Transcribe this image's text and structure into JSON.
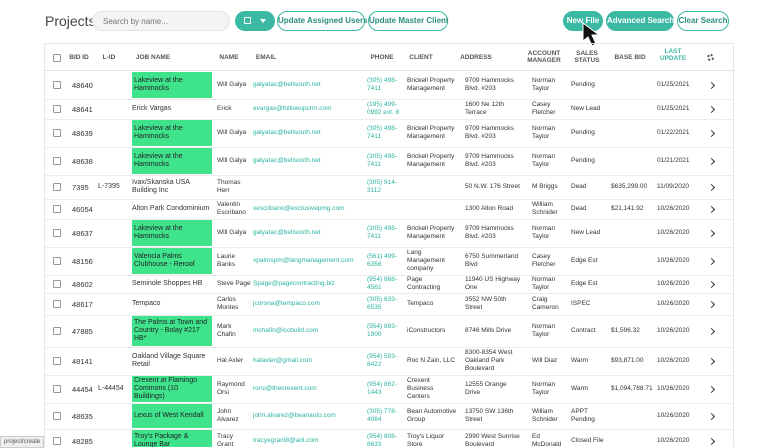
{
  "page_title": "Projects",
  "search": {
    "placeholder": "Search by name..."
  },
  "toolbar": {
    "update_assigned_label": "Update Assigned Users",
    "update_master_label": "Update Master Client",
    "new_file_label": "New File",
    "advanced_search_label": "Advanced Search",
    "clear_search_label": "Clear Search"
  },
  "colors": {
    "accent": "#3cb9a3",
    "highlight": "#3fe38c"
  },
  "columns": {
    "bid_id": "BID ID",
    "l_id": "L-ID",
    "job_name": "JOB NAME",
    "name": "NAME",
    "email": "EMAIL",
    "phone": "PHONE",
    "client": "CLIENT",
    "address": "ADDRESS",
    "account_manager": "ACCOUNT MANAGER",
    "sales_status": "SALES STATUS",
    "base_bid": "BASE BID",
    "last_update": "LAST UPDATE"
  },
  "rows": [
    {
      "bid": "48640",
      "lid": "",
      "job": "Lakeview at the Hammocks",
      "hl": true,
      "name": "Will Galya",
      "email": "galyatac@bellsouth.net",
      "phone": "(305) 498-7411",
      "client": "Brickell Property Management",
      "address": "9709 Hammocks Blvd. #203",
      "am": "Norman Taylor",
      "status": "Pending",
      "base": "",
      "date": "01/25/2021"
    },
    {
      "bid": "48641",
      "lid": "",
      "job": "Erick Vargas",
      "hl": false,
      "name": "Erick",
      "email": "evargas@followupcrm.com",
      "phone": "(195) 499-0992 ext. 8",
      "client": "",
      "address": "1600 Ne 12th Terrace",
      "am": "Casey Fletcher",
      "status": "New Lead",
      "base": "",
      "date": "01/25/2021"
    },
    {
      "bid": "48639",
      "lid": "",
      "job": "Lakeview at the Hammocks",
      "hl": true,
      "name": "Will Galya",
      "email": "galyatac@bellsouth.net",
      "phone": "(305) 498-7411",
      "client": "Brickell Property Management",
      "address": "9709 Hammocks Blvd. #203",
      "am": "Norman Taylor",
      "status": "Pending",
      "base": "",
      "date": "01/22/2021"
    },
    {
      "bid": "48638",
      "lid": "",
      "job": "Lakeview at the Hammocks",
      "hl": true,
      "name": "Will Galya",
      "email": "galyatac@bellsouth.net",
      "phone": "(305) 498-7411",
      "client": "Brickell Property Management",
      "address": "9709 Hammocks Blvd. #203",
      "am": "Norman Taylor",
      "status": "Pending",
      "base": "",
      "date": "01/21/2021"
    },
    {
      "bid": "7395",
      "lid": "L-7395",
      "job": "Ivax/Skanska USA Building Inc",
      "hl": false,
      "name": "Thomas Herr",
      "email": "",
      "phone": "(305) 914-3112",
      "client": "",
      "address": "50 N.W. 176 Street",
      "am": "M Briggs",
      "status": "Dead",
      "base": "$635,299.00",
      "date": "11/09/2020"
    },
    {
      "bid": "46054",
      "lid": "",
      "job": "Alton Park Condominium",
      "hl": false,
      "name": "Valentin Escribano",
      "email": "vescribano@exclusivepmg.com",
      "phone": "",
      "client": "",
      "address": "1300 Alton Road",
      "am": "William Schnider",
      "status": "Dead",
      "base": "$21,141.92",
      "date": "10/26/2020"
    },
    {
      "bid": "48637",
      "lid": "",
      "job": "Lakeview at the Hammocks",
      "hl": true,
      "name": "Will Galya",
      "email": "galyatac@bellsouth.net",
      "phone": "(305) 498-7411",
      "client": "Brickell Property Management",
      "address": "9709 Hammocks Blvd. #203",
      "am": "Norman Taylor",
      "status": "New Lead",
      "base": "",
      "date": "10/26/2020"
    },
    {
      "bid": "48156",
      "lid": "",
      "job": "Valencia Palms Clubhouse - Reroof",
      "hl": true,
      "name": "Laurie Banks",
      "email": "vpalmspm@langmanagement.com",
      "phone": "(561) 499-6358",
      "client": "Lang Management company",
      "address": "6750 Summerland Blvd",
      "am": "Casey Fletcher",
      "status": "Edge Est",
      "base": "",
      "date": "10/26/2020"
    },
    {
      "bid": "48602",
      "lid": "",
      "job": "Seminole Shoppes HB",
      "hl": false,
      "name": "Steve Page",
      "email": "Spage@pagecontracting.biz",
      "phone": "(954) 868-4561",
      "client": "Page Contracting",
      "address": "11940 US Highway One",
      "am": "Norman Taylor",
      "status": "Edge Est",
      "base": "",
      "date": "10/26/2020"
    },
    {
      "bid": "48617",
      "lid": "",
      "job": "Tempaco",
      "hl": false,
      "name": "Carlos Montes",
      "email": "jcorona@tempaco.com",
      "phone": "(305) 633-6535",
      "client": "Tempaco",
      "address": "3552 NW 50th Street",
      "am": "Craig Cameron",
      "status": "ISPEC",
      "base": "",
      "date": "10/26/2020"
    },
    {
      "bid": "47885",
      "lid": "",
      "job": "The Palms at Town and Country - Bolay #217 HB*",
      "hl": true,
      "name": "Mark Chafin",
      "email": "mchafin@iccbuild.com",
      "phone": "(954) 893-1900",
      "client": "iConstructors",
      "address": "8746 Mills Drive",
      "am": "Norman Taylor",
      "status": "Contract",
      "base": "$1,596.32",
      "date": "10/26/2020"
    },
    {
      "bid": "48141",
      "lid": "",
      "job": "Oakland Village Square Retail",
      "hl": false,
      "name": "Hal Axler",
      "email": "halaxler@gmail.com",
      "phone": "(954) 593-8422",
      "client": "Roc N Zain, LLC",
      "address": "8300-8354 West Oakland Park Boulevard",
      "am": "Will Diaz",
      "status": "Warm",
      "base": "$93,871.00",
      "date": "10/26/2020"
    },
    {
      "bid": "44454",
      "lid": "L-44454",
      "job": "Crexent at Flamingo Commons (10 Buildings)",
      "hl": true,
      "name": "Raymond Orsi",
      "email": "rorsi@thecrexent.com",
      "phone": "(954) 862-1443",
      "client": "Crexent Business Centers",
      "address": "12555 Orange Drive",
      "am": "Norman Taylor",
      "status": "Warm",
      "base": "$1,094,788.71",
      "date": "10/26/2020"
    },
    {
      "bid": "48635",
      "lid": "",
      "job": "Lexus of West Kendall",
      "hl": true,
      "name": "John Alvarez",
      "email": "john.alvarez@beanauto.com",
      "phone": "(305) 778-4084",
      "client": "Bean Automotive Group",
      "address": "13750 SW 136th Street",
      "am": "William Schnider",
      "status": "APPT Pending",
      "base": "",
      "date": "10/26/2020"
    },
    {
      "bid": "48285",
      "lid": "",
      "job": "Troy's Package & Lounge Bar",
      "hl": true,
      "name": "Tracy Grant",
      "email": "tracyegrant8@aol.com",
      "phone": "(954) 806-8633",
      "client": "Troy's Liquor Store",
      "address": "2990 West Sunrise Boulevard",
      "am": "Ed McDonald",
      "status": "Closed File",
      "base": "",
      "date": "10/26/2020"
    }
  ],
  "status_bar": "project/create"
}
